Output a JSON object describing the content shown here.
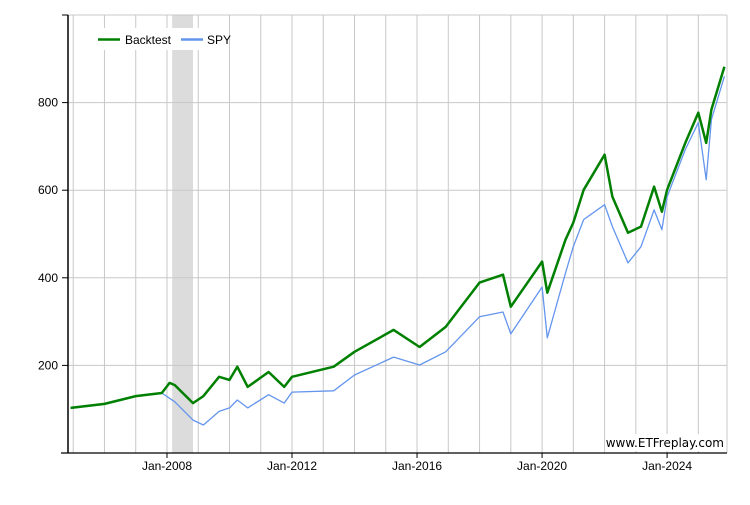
{
  "chart_data": {
    "type": "line",
    "title": "",
    "xlabel": "",
    "ylabel": "",
    "xlim": [
      "2004-11",
      "2025-12"
    ],
    "ylim": [
      0,
      1000
    ],
    "yticks": [
      200,
      400,
      600,
      800
    ],
    "xticks": [
      {
        "date": "2008-01",
        "label": "Jan-2008"
      },
      {
        "date": "2012-01",
        "label": "Jan-2012"
      },
      {
        "date": "2016-01",
        "label": "Jan-2016"
      },
      {
        "date": "2020-01",
        "label": "Jan-2020"
      },
      {
        "date": "2024-01",
        "label": "Jan-2024"
      }
    ],
    "grid": true,
    "legend_position": "top-left",
    "shaded_period": {
      "start": "2008-03",
      "end": "2008-11",
      "color": "#dcdcdc"
    },
    "x": [
      "2004-12",
      "2006-01",
      "2007-01",
      "2007-11",
      "2008-02",
      "2008-04",
      "2008-11",
      "2009-03",
      "2009-09",
      "2010-01",
      "2010-04",
      "2010-08",
      "2011-04",
      "2011-10",
      "2012-01",
      "2013-05",
      "2014-01",
      "2015-04",
      "2016-02",
      "2016-12",
      "2018-01",
      "2018-10",
      "2019-01",
      "2020-01",
      "2020-03",
      "2020-10",
      "2021-01",
      "2021-05",
      "2022-01",
      "2022-04",
      "2022-10",
      "2023-03",
      "2023-08",
      "2023-11",
      "2024-01",
      "2024-08",
      "2025-01",
      "2025-04",
      "2025-06",
      "2025-11"
    ],
    "series": [
      {
        "name": "Backtest",
        "color": "#008000",
        "values": [
          103,
          112,
          130,
          137,
          160,
          155,
          114,
          130,
          174,
          167,
          197,
          151,
          185,
          151,
          174,
          197,
          231,
          281,
          242,
          288,
          389,
          407,
          334,
          437,
          366,
          487,
          526,
          601,
          681,
          585,
          503,
          517,
          608,
          551,
          601,
          708,
          777,
          708,
          784,
          882
        ]
      },
      {
        "name": "SPY",
        "color": "#6495ed",
        "values": [
          102,
          111,
          129,
          137,
          125,
          117,
          75,
          64,
          95,
          103,
          121,
          103,
          133,
          114,
          139,
          142,
          178,
          219,
          201,
          231,
          311,
          322,
          272,
          379,
          263,
          411,
          471,
          533,
          567,
          517,
          434,
          471,
          555,
          510,
          585,
          693,
          754,
          624,
          761,
          860
        ]
      }
    ],
    "watermark": "www.ETFreplay.com"
  }
}
